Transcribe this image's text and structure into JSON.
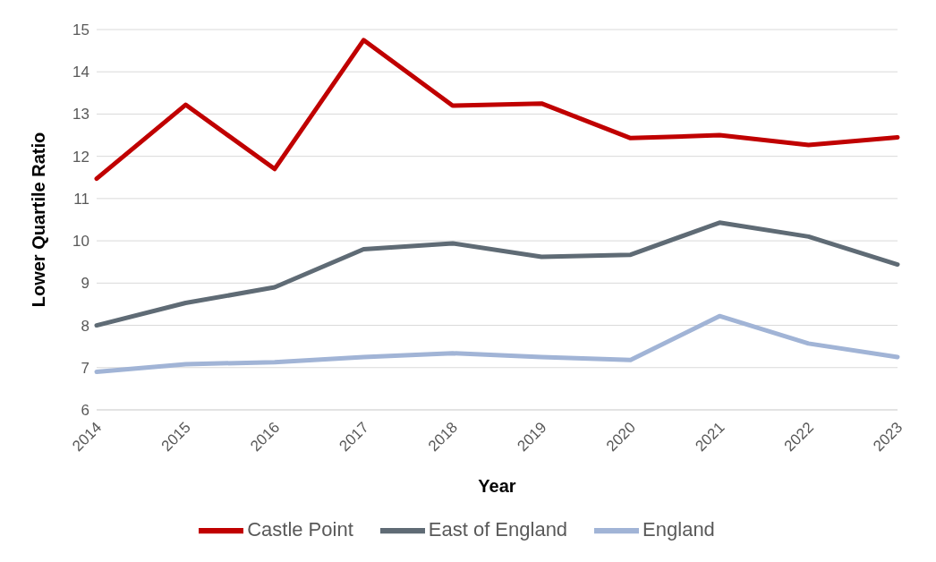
{
  "chart_data": {
    "type": "line",
    "xlabel": "Year",
    "ylabel": "Lower Quartile Ratio",
    "categories": [
      "2014",
      "2015",
      "2016",
      "2017",
      "2018",
      "2019",
      "2020",
      "2021",
      "2022",
      "2023"
    ],
    "series": [
      {
        "name": "England",
        "color": "#a1b4d6",
        "values": [
          6.9,
          7.08,
          7.13,
          7.25,
          7.34,
          7.25,
          7.18,
          8.22,
          7.57,
          7.25
        ]
      },
      {
        "name": "East of England",
        "color": "#5f6b75",
        "values": [
          8.0,
          8.53,
          8.9,
          9.8,
          9.94,
          9.62,
          9.67,
          10.43,
          10.1,
          9.44
        ]
      },
      {
        "name": "Castle Point",
        "color": "#c00000",
        "values": [
          11.47,
          13.22,
          11.7,
          14.75,
          13.2,
          13.25,
          12.43,
          12.5,
          12.27,
          12.45
        ]
      }
    ],
    "ylim": [
      6,
      15
    ],
    "yticks": [
      6,
      7,
      8,
      9,
      10,
      11,
      12,
      13,
      14,
      15
    ],
    "grid": "y",
    "legend": "bottom",
    "marker": "none",
    "line_style": "solid"
  }
}
